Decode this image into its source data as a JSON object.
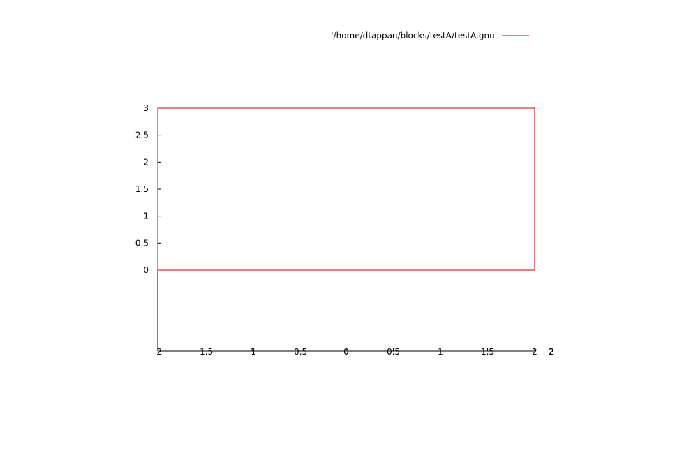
{
  "chart_data": {
    "type": "line",
    "title": "",
    "xlabel": "",
    "ylabel": "",
    "xlim": [
      -2,
      2
    ],
    "ylim": [
      0,
      3
    ],
    "xticks": [
      "-2",
      "-1.5",
      "-1",
      "-0.5",
      "0",
      "0.5",
      "1",
      "1.5",
      "2"
    ],
    "yticks": [
      "0",
      "0.5",
      "1",
      "1.5",
      "2",
      "2.5",
      "3"
    ],
    "x2ticks": [
      "-2",
      "2"
    ],
    "grid": false,
    "legend_position": "top-right",
    "series": [
      {
        "name": "'/home/dtappan/blocks/testA/testA.gnu'",
        "color": "#cc0000",
        "points": [
          [
            -2,
            0
          ],
          [
            -2,
            3
          ],
          [
            2,
            3
          ],
          [
            2,
            0
          ],
          [
            -2,
            0
          ]
        ]
      }
    ]
  }
}
